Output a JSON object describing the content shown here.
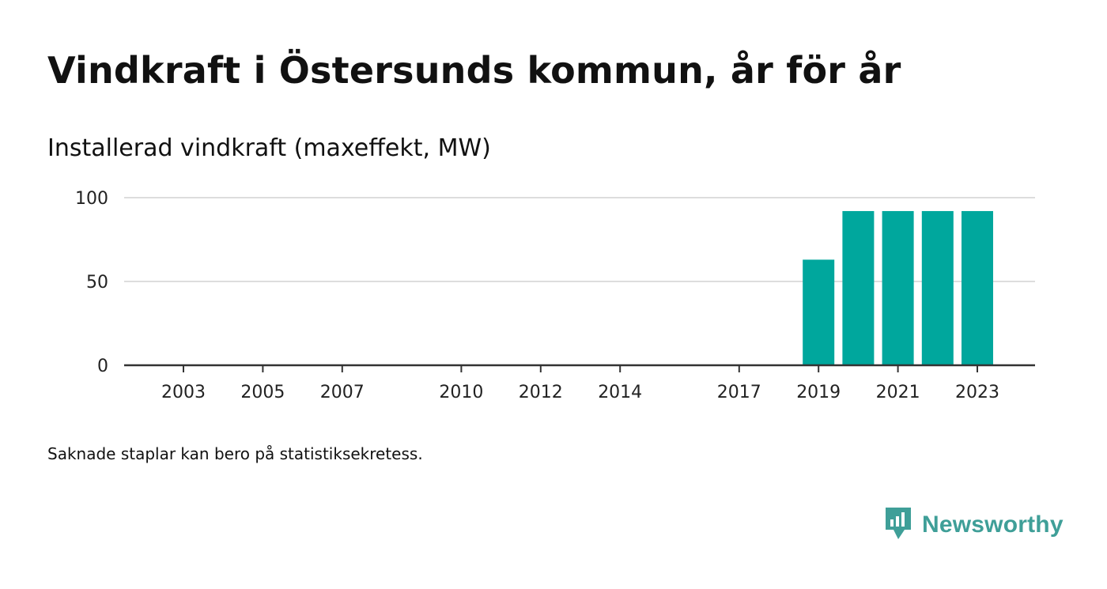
{
  "header": {
    "title": "Vindkraft i Östersunds kommun, år för år",
    "subtitle": "Installerad vindkraft (maxeffekt, MW)"
  },
  "footer": {
    "note": "Saknade staplar kan bero på statistiksekretess."
  },
  "brand": {
    "name": "Newsworthy",
    "icon": "newsworthy-logo-icon",
    "color": "#3f9f98"
  },
  "colors": {
    "bar": "#00a79d",
    "grid": "#dddddd",
    "axis": "#333333"
  },
  "chart_data": {
    "type": "bar",
    "title": "Vindkraft i Östersunds kommun, år för år",
    "subtitle": "Installerad vindkraft (maxeffekt, MW)",
    "xlabel": "",
    "ylabel": "",
    "ylim": [
      0,
      100
    ],
    "y_ticks": [
      0,
      50,
      100
    ],
    "x_tick_labels": [
      "2003",
      "2005",
      "2007",
      "2010",
      "2012",
      "2014",
      "2017",
      "2019",
      "2021",
      "2023"
    ],
    "grid": true,
    "legend": "none",
    "categories": [
      "2019",
      "2020",
      "2021",
      "2022",
      "2023"
    ],
    "values": [
      63,
      92,
      92,
      92,
      92
    ]
  }
}
